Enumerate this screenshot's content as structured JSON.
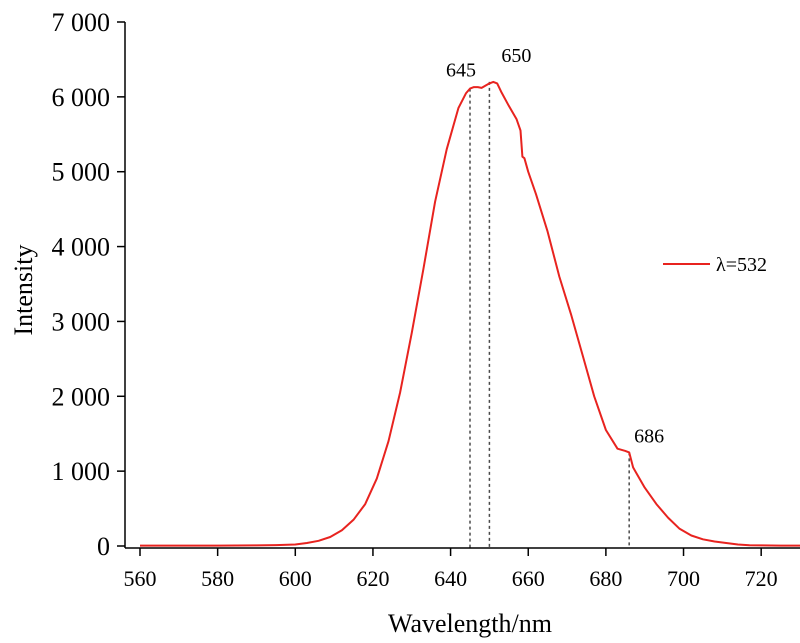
{
  "chart_data": {
    "type": "line",
    "title": "",
    "xlabel": "Wavelength/nm",
    "ylabel": "Intensity",
    "xlim": [
      560,
      730
    ],
    "ylim": [
      0,
      7000
    ],
    "x_ticks": [
      560,
      580,
      600,
      620,
      640,
      660,
      680,
      700,
      720
    ],
    "x_tick_labels": [
      "560",
      "580",
      "600",
      "620",
      "640",
      "660",
      "680",
      "700",
      "720"
    ],
    "y_ticks": [
      0,
      1000,
      2000,
      3000,
      4000,
      5000,
      6000,
      7000
    ],
    "y_tick_labels": [
      "0",
      "1 000",
      "2 000",
      "3 000",
      "4 000",
      "5 000",
      "6 000",
      "7 000"
    ],
    "grid": false,
    "legend_position": "right",
    "series": [
      {
        "name": "λ=532",
        "color": "#e8231f",
        "x": [
          560,
          570,
          580,
          590,
          595,
          600,
          603,
          606,
          609,
          612,
          615,
          618,
          621,
          624,
          627,
          630,
          633,
          636,
          639,
          642,
          644,
          645,
          646,
          647,
          648,
          649,
          650,
          651,
          652,
          653,
          655,
          657,
          658,
          658.5,
          659,
          660,
          662,
          665,
          668,
          671,
          674,
          677,
          680,
          683,
          685,
          686,
          687,
          690,
          693,
          696,
          699,
          702,
          705,
          708,
          711,
          714,
          717,
          720,
          725,
          730
        ],
        "y": [
          5,
          5,
          5,
          8,
          12,
          20,
          40,
          70,
          120,
          210,
          350,
          560,
          900,
          1400,
          2050,
          2850,
          3700,
          4600,
          5300,
          5850,
          6050,
          6110,
          6130,
          6130,
          6120,
          6150,
          6180,
          6200,
          6180,
          6070,
          5880,
          5700,
          5550,
          5200,
          5180,
          5000,
          4700,
          4200,
          3600,
          3100,
          2550,
          2000,
          1550,
          1300,
          1270,
          1250,
          1050,
          780,
          560,
          380,
          230,
          140,
          90,
          60,
          40,
          20,
          10,
          8,
          5,
          5
        ]
      }
    ],
    "annotations": [
      {
        "label": "645",
        "x": 645,
        "y": 6110
      },
      {
        "label": "650",
        "x": 650,
        "y": 6200
      },
      {
        "label": "686",
        "x": 686,
        "y": 1250
      }
    ]
  }
}
